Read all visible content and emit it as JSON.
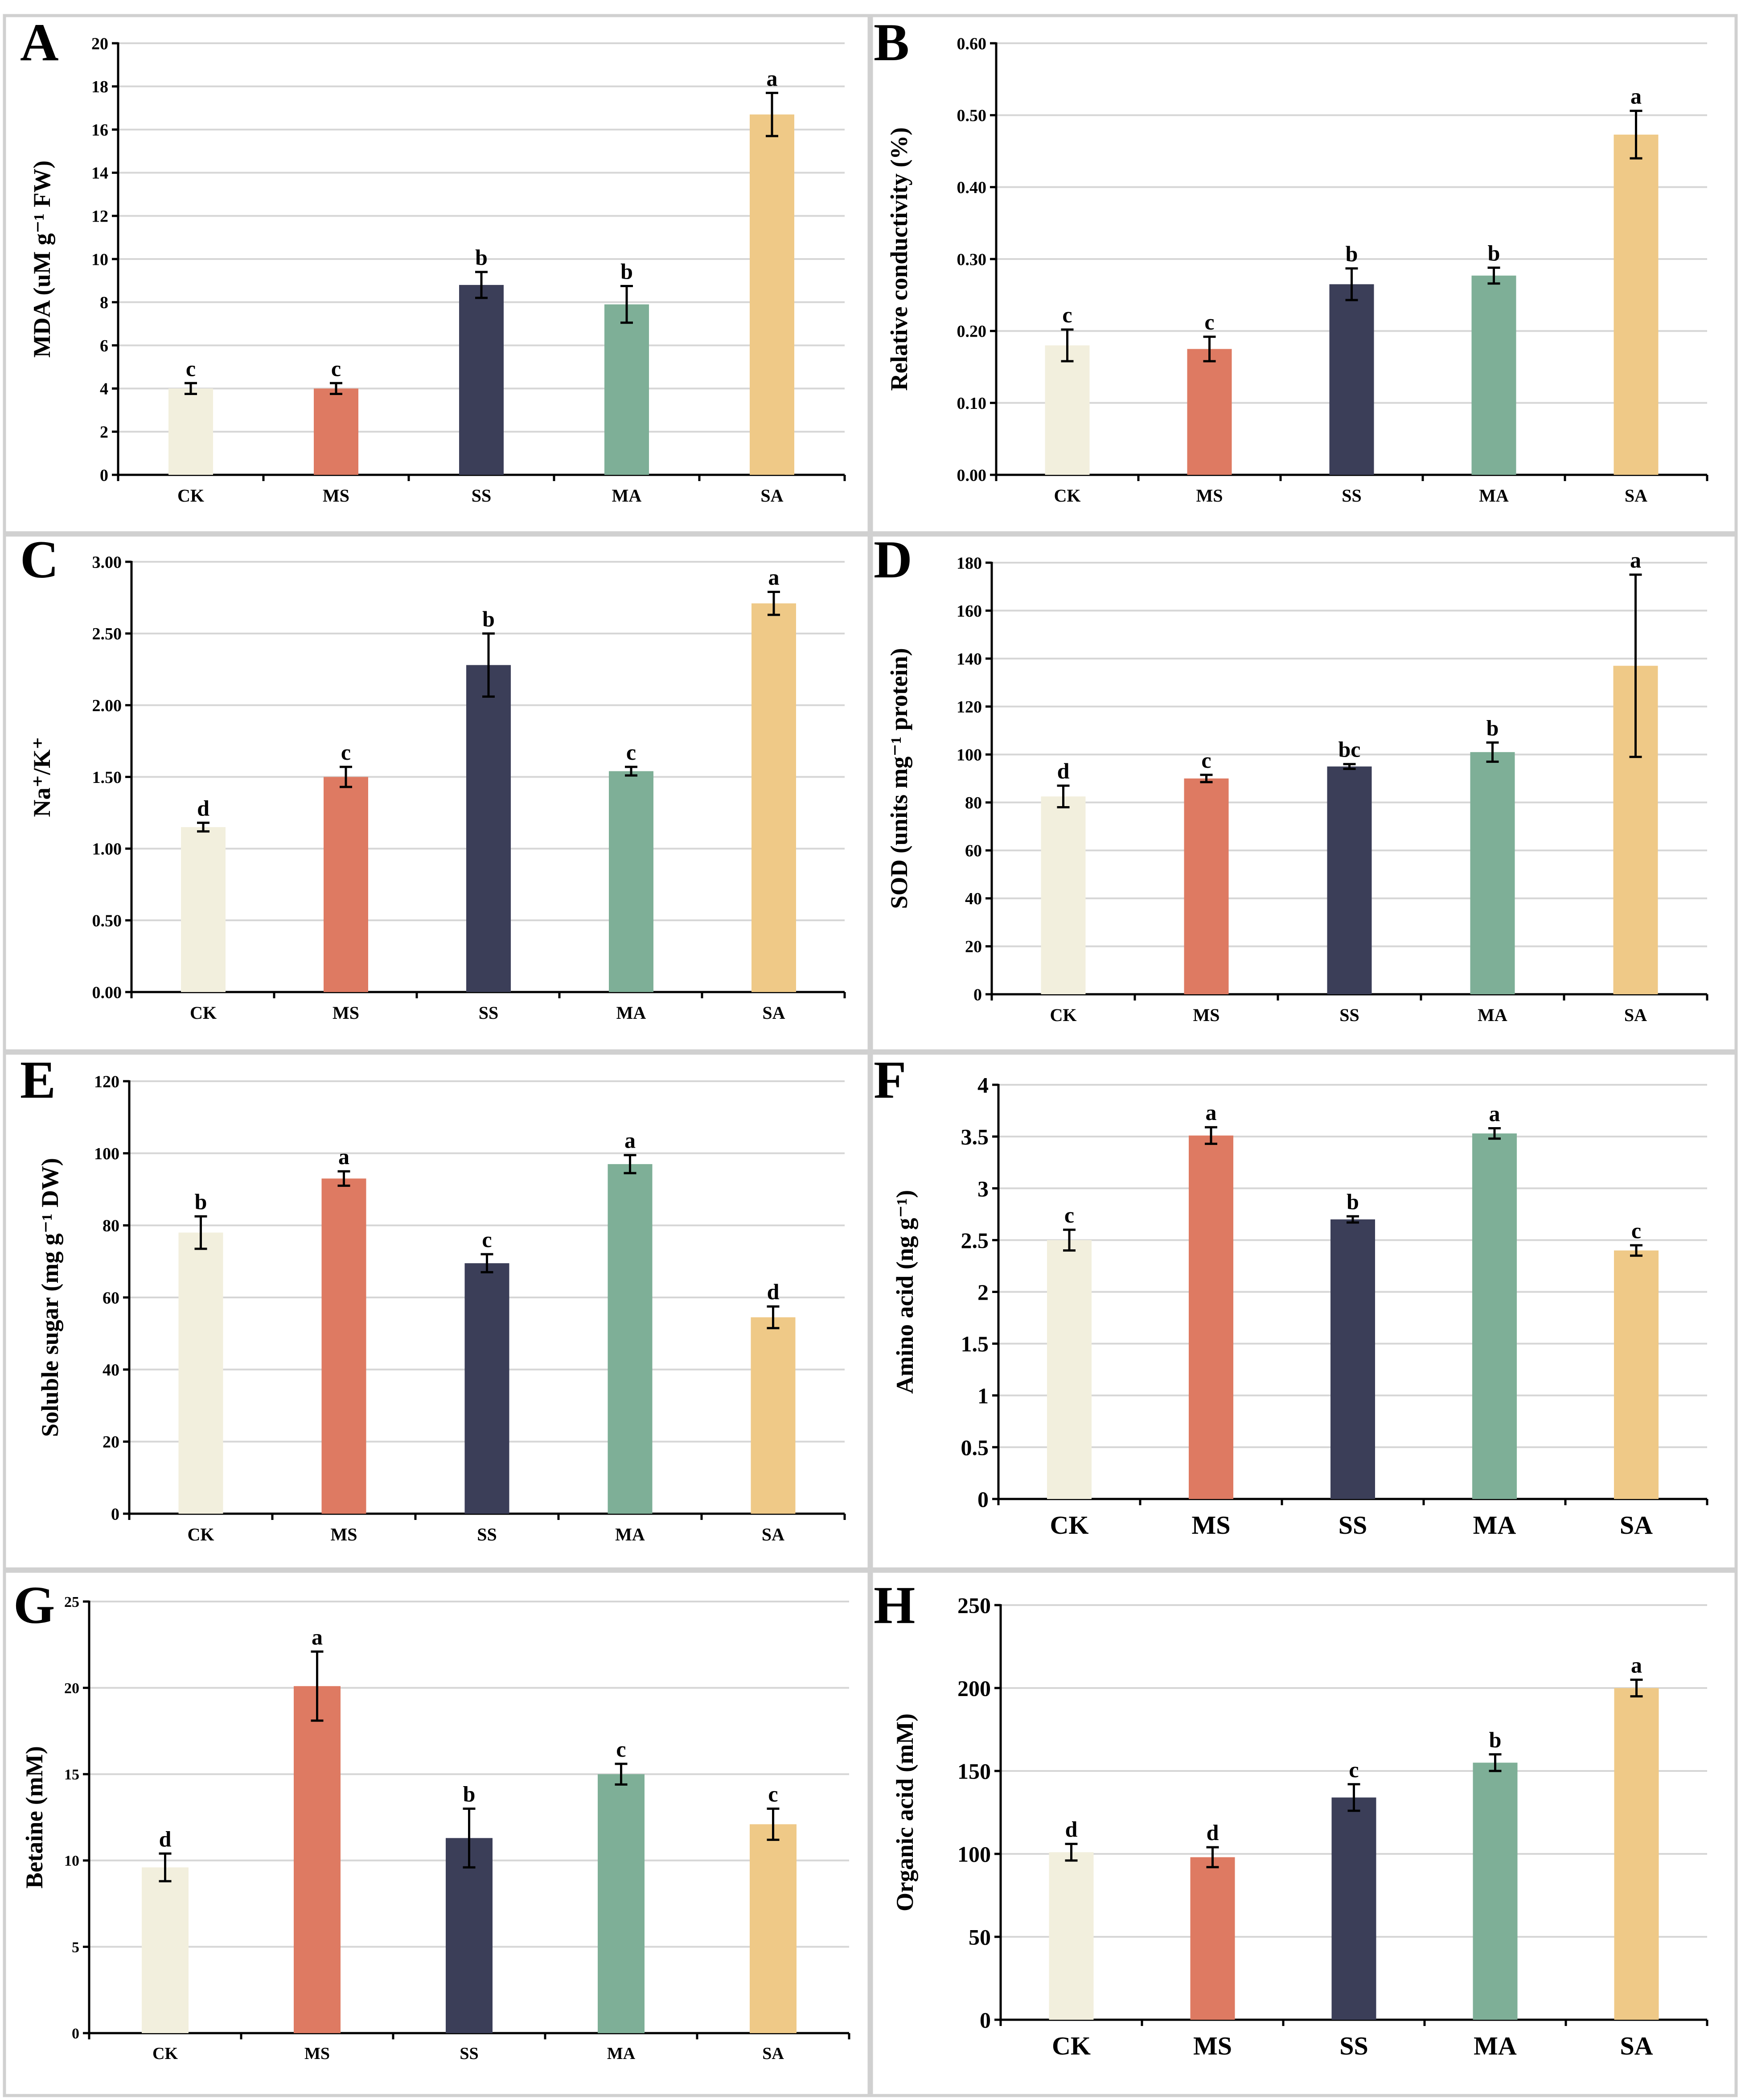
{
  "colors": {
    "CK": "#F2EFDD",
    "MS": "#DE7A62",
    "SS": "#3B3E58",
    "MA": "#7EAF97",
    "SA": "#EFC987"
  },
  "chart_data": [
    {
      "panel": "A",
      "type": "bar",
      "categories": [
        "CK",
        "MS",
        "SS",
        "MA",
        "SA"
      ],
      "values": [
        4.0,
        4.0,
        8.8,
        7.9,
        16.7
      ],
      "errors": [
        0.25,
        0.25,
        0.6,
        0.85,
        1.0
      ],
      "letters": [
        "c",
        "c",
        "b",
        "b",
        "a"
      ],
      "ylabel": "MDA (uM g⁻¹ FW)",
      "ylim": [
        0,
        20
      ],
      "ticks": [
        "0",
        "2",
        "4",
        "6",
        "8",
        "10",
        "12",
        "14",
        "16",
        "18",
        "20"
      ],
      "grid": true
    },
    {
      "panel": "B",
      "type": "bar",
      "categories": [
        "CK",
        "MS",
        "SS",
        "MA",
        "SA"
      ],
      "values": [
        0.18,
        0.175,
        0.265,
        0.277,
        0.473
      ],
      "errors": [
        0.022,
        0.017,
        0.022,
        0.011,
        0.033
      ],
      "letters": [
        "c",
        "c",
        "b",
        "b",
        "a"
      ],
      "ylabel": "Relative conductivity (%)",
      "ylim": [
        0,
        0.6
      ],
      "ticks": [
        "0.00",
        "0.10",
        "0.20",
        "0.30",
        "0.40",
        "0.50",
        "0.60"
      ],
      "grid": true
    },
    {
      "panel": "C",
      "type": "bar",
      "categories": [
        "CK",
        "MS",
        "SS",
        "MA",
        "SA"
      ],
      "values": [
        1.15,
        1.5,
        2.28,
        1.54,
        2.71
      ],
      "errors": [
        0.03,
        0.07,
        0.22,
        0.03,
        0.08
      ],
      "letters": [
        "d",
        "c",
        "b",
        "c",
        "a"
      ],
      "ylabel": "Na⁺/K⁺",
      "ylim": [
        0,
        3
      ],
      "ticks": [
        "0.00",
        "0.50",
        "1.00",
        "1.50",
        "2.00",
        "2.50",
        "3.00"
      ],
      "grid": true
    },
    {
      "panel": "D",
      "type": "bar",
      "categories": [
        "CK",
        "MS",
        "SS",
        "MA",
        "SA"
      ],
      "values": [
        82.5,
        90,
        95,
        101,
        137
      ],
      "errors": [
        4.5,
        1.5,
        1.0,
        4.0,
        38
      ],
      "letters": [
        "d",
        "c",
        "bc",
        "b",
        "a"
      ],
      "ylabel": "SOD (units mg⁻¹ protein)",
      "ylim": [
        0,
        180
      ],
      "ticks": [
        "0",
        "20",
        "40",
        "60",
        "80",
        "100",
        "120",
        "140",
        "160",
        "180"
      ],
      "grid": true
    },
    {
      "panel": "E",
      "type": "bar",
      "categories": [
        "CK",
        "MS",
        "SS",
        "MA",
        "SA"
      ],
      "values": [
        78,
        93,
        69.5,
        97,
        54.5
      ],
      "errors": [
        4.5,
        2.0,
        2.5,
        2.5,
        3.0
      ],
      "letters": [
        "b",
        "a",
        "c",
        "a",
        "d"
      ],
      "ylabel": "Soluble sugar (mg g⁻¹ DW)",
      "ylim": [
        0,
        120
      ],
      "ticks": [
        "0",
        "20",
        "40",
        "60",
        "80",
        "100",
        "120"
      ],
      "grid": true
    },
    {
      "panel": "F",
      "type": "bar",
      "categories": [
        "CK",
        "MS",
        "SS",
        "MA",
        "SA"
      ],
      "values": [
        2.5,
        3.51,
        2.7,
        3.53,
        2.4
      ],
      "errors": [
        0.1,
        0.08,
        0.03,
        0.05,
        0.05
      ],
      "letters": [
        "c",
        "a",
        "b",
        "a",
        "c"
      ],
      "ylabel": "Amino acid (ng g⁻¹)",
      "ylim": [
        0,
        4
      ],
      "ticks": [
        "0",
        "0.5",
        "1",
        "1.5",
        "2",
        "2.5",
        "3",
        "3.5",
        "4"
      ],
      "grid": true
    },
    {
      "panel": "G",
      "type": "bar",
      "categories": [
        "CK",
        "MS",
        "SS",
        "MA",
        "SA"
      ],
      "values": [
        9.6,
        20.1,
        11.3,
        15.0,
        12.1
      ],
      "errors": [
        0.8,
        2.0,
        1.7,
        0.6,
        0.9
      ],
      "letters": [
        "d",
        "a",
        "b",
        "c",
        "c"
      ],
      "ylabel": "Betaine (mM)",
      "ylim": [
        0,
        25
      ],
      "ticks": [
        "0",
        "5",
        "10",
        "15",
        "20",
        "25"
      ],
      "grid": true
    },
    {
      "panel": "H",
      "type": "bar",
      "categories": [
        "CK",
        "MS",
        "SS",
        "MA",
        "SA"
      ],
      "values": [
        101,
        98,
        134,
        155,
        200
      ],
      "errors": [
        5,
        6,
        8,
        5,
        5
      ],
      "letters": [
        "d",
        "d",
        "c",
        "b",
        "a"
      ],
      "ylabel": "Organic acid (mM)",
      "ylim": [
        0,
        250
      ],
      "ticks": [
        "0",
        "50",
        "100",
        "150",
        "200",
        "250"
      ],
      "grid": true
    }
  ]
}
